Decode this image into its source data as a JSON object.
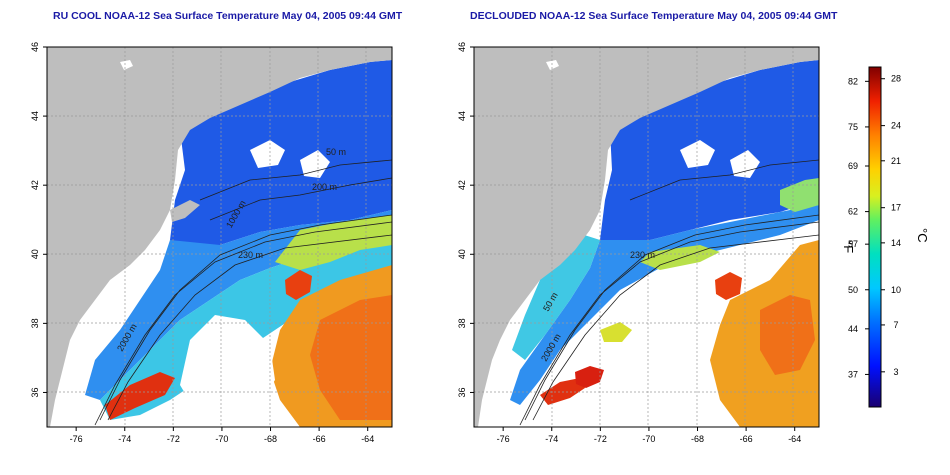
{
  "maps": {
    "left": {
      "title": "RU COOL NOAA-12 Sea Surface Temperature May 04, 2005 09:44 GMT"
    },
    "right": {
      "title": "DECLOUDED NOAA-12 Sea Surface Temperature May 04, 2005 09:44 GMT"
    }
  },
  "axes": {
    "lon_ticks": [
      -76,
      -74,
      -72,
      -70,
      -68,
      -66,
      -64
    ],
    "lat_ticks": [
      36,
      38,
      40,
      42,
      44,
      46
    ],
    "lon_range": [
      -77.2,
      -63.0
    ],
    "lat_range": [
      35.0,
      46.0
    ]
  },
  "isobaths": {
    "left": [
      "50 m",
      "200 m",
      "1000 m",
      "2000 m",
      "230 m"
    ],
    "right": [
      "230 m",
      "50 m",
      "2000 m"
    ]
  },
  "colorbar": {
    "unit_f": "°F",
    "unit_c": "°C",
    "f_ticks": [
      37,
      44,
      50,
      57,
      62,
      69,
      75,
      82
    ],
    "c_ticks": [
      3,
      7,
      10,
      14,
      17,
      21,
      24,
      28
    ],
    "range_c": [
      0,
      29
    ]
  },
  "colors": {
    "land": "#bebebe",
    "cloud": "#ffffff",
    "title": "#1a1aa6"
  }
}
